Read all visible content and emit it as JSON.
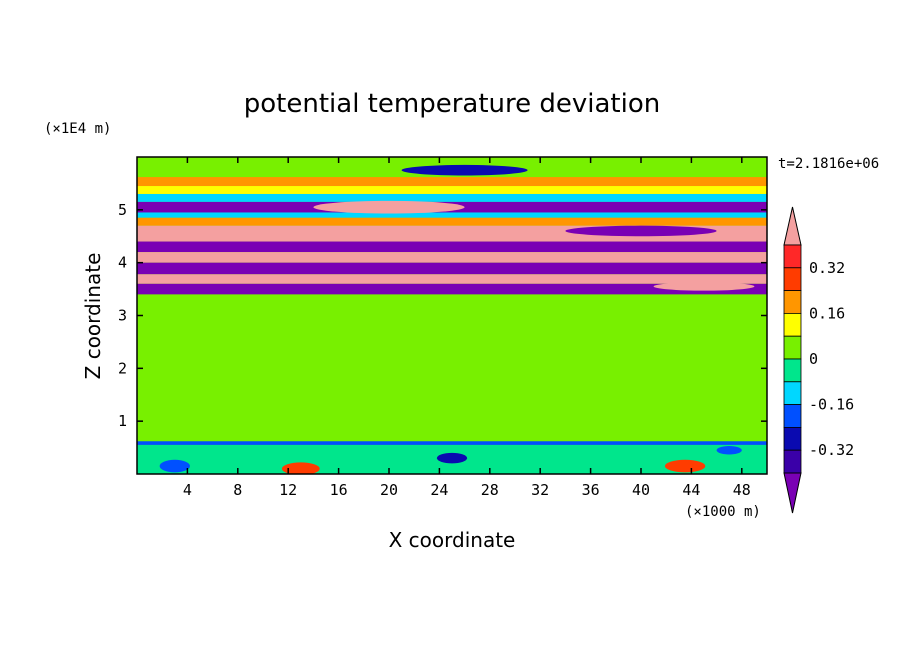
{
  "chart_data": {
    "type": "heatmap",
    "title": "potential temperature deviation",
    "time_label": "t=2.1816e+06",
    "xlabel": "X coordinate",
    "ylabel": "Z coordinate",
    "x_unit": "(×1000 m)",
    "y_unit": "(×1E4 m)",
    "xlim": [
      0,
      50
    ],
    "ylim": [
      0,
      6
    ],
    "x_ticks": [
      4,
      8,
      12,
      16,
      20,
      24,
      28,
      32,
      36,
      40,
      44,
      48
    ],
    "y_ticks": [
      1,
      2,
      3,
      4,
      5
    ],
    "colorbar": {
      "tick_labels": [
        "0.32",
        "0.16",
        "0",
        "-0.16",
        "-0.32"
      ],
      "tick_values": [
        0.32,
        0.16,
        0,
        -0.16,
        -0.32
      ],
      "levels": [
        -0.4,
        -0.32,
        -0.24,
        -0.16,
        -0.08,
        0,
        0.08,
        0.16,
        0.24,
        0.32,
        0.4
      ],
      "colors": [
        "#7a00b4",
        "#3a00a8",
        "#0a0ab0",
        "#0050ff",
        "#00d7ff",
        "#00e68c",
        "#78f000",
        "#ffff00",
        "#ff9600",
        "#ff3c00",
        "#ff2828",
        "#f4a0a0"
      ]
    },
    "bands": [
      {
        "zmin": 5.45,
        "zmax": 5.62,
        "color": "#ff9600"
      },
      {
        "zmin": 5.3,
        "zmax": 5.45,
        "color": "#ffff00"
      },
      {
        "zmin": 5.15,
        "zmax": 5.3,
        "color": "#00d7ff"
      },
      {
        "zmin": 4.95,
        "zmax": 5.15,
        "color": "#7a00b4"
      },
      {
        "zmin": 4.85,
        "zmax": 4.95,
        "color": "#00d7ff"
      },
      {
        "zmin": 4.7,
        "zmax": 4.85,
        "color": "#ff9600"
      },
      {
        "zmin": 4.4,
        "zmax": 4.7,
        "color": "#f4a0a0"
      },
      {
        "zmin": 4.2,
        "zmax": 4.4,
        "color": "#7a00b4"
      },
      {
        "zmin": 4.0,
        "zmax": 4.2,
        "color": "#f4a0a0"
      },
      {
        "zmin": 3.78,
        "zmax": 4.0,
        "color": "#7a00b4"
      },
      {
        "zmin": 3.6,
        "zmax": 3.78,
        "color": "#f4a0a0"
      },
      {
        "zmin": 3.4,
        "zmax": 3.6,
        "color": "#7a00b4"
      },
      {
        "zmin": 0.55,
        "zmax": 0.62,
        "color": "#0050ff"
      },
      {
        "zmin": 0.0,
        "zmax": 0.55,
        "color": "#00e68c"
      }
    ],
    "blobs": [
      {
        "x": 20,
        "z": 5.05,
        "rx": 6,
        "rz": 0.12,
        "color": "#f4a0a0"
      },
      {
        "x": 26,
        "z": 5.75,
        "rx": 5,
        "rz": 0.1,
        "color": "#0a0ab0"
      },
      {
        "x": 8,
        "z": 4.55,
        "rx": 7,
        "rz": 0.12,
        "color": "#f4a0a0"
      },
      {
        "x": 40,
        "z": 4.6,
        "rx": 6,
        "rz": 0.1,
        "color": "#7a00b4"
      },
      {
        "x": 45,
        "z": 3.55,
        "rx": 4,
        "rz": 0.08,
        "color": "#f4a0a0"
      },
      {
        "x": 3,
        "z": 0.15,
        "rx": 1.2,
        "rz": 0.12,
        "color": "#0050ff"
      },
      {
        "x": 13,
        "z": 0.1,
        "rx": 1.5,
        "rz": 0.12,
        "color": "#ff3c00"
      },
      {
        "x": 25,
        "z": 0.3,
        "rx": 1.2,
        "rz": 0.1,
        "color": "#0a0ab0"
      },
      {
        "x": 43.5,
        "z": 0.15,
        "rx": 1.6,
        "rz": 0.12,
        "color": "#ff3c00"
      },
      {
        "x": 47,
        "z": 0.45,
        "rx": 1.0,
        "rz": 0.08,
        "color": "#0050ff"
      }
    ]
  }
}
